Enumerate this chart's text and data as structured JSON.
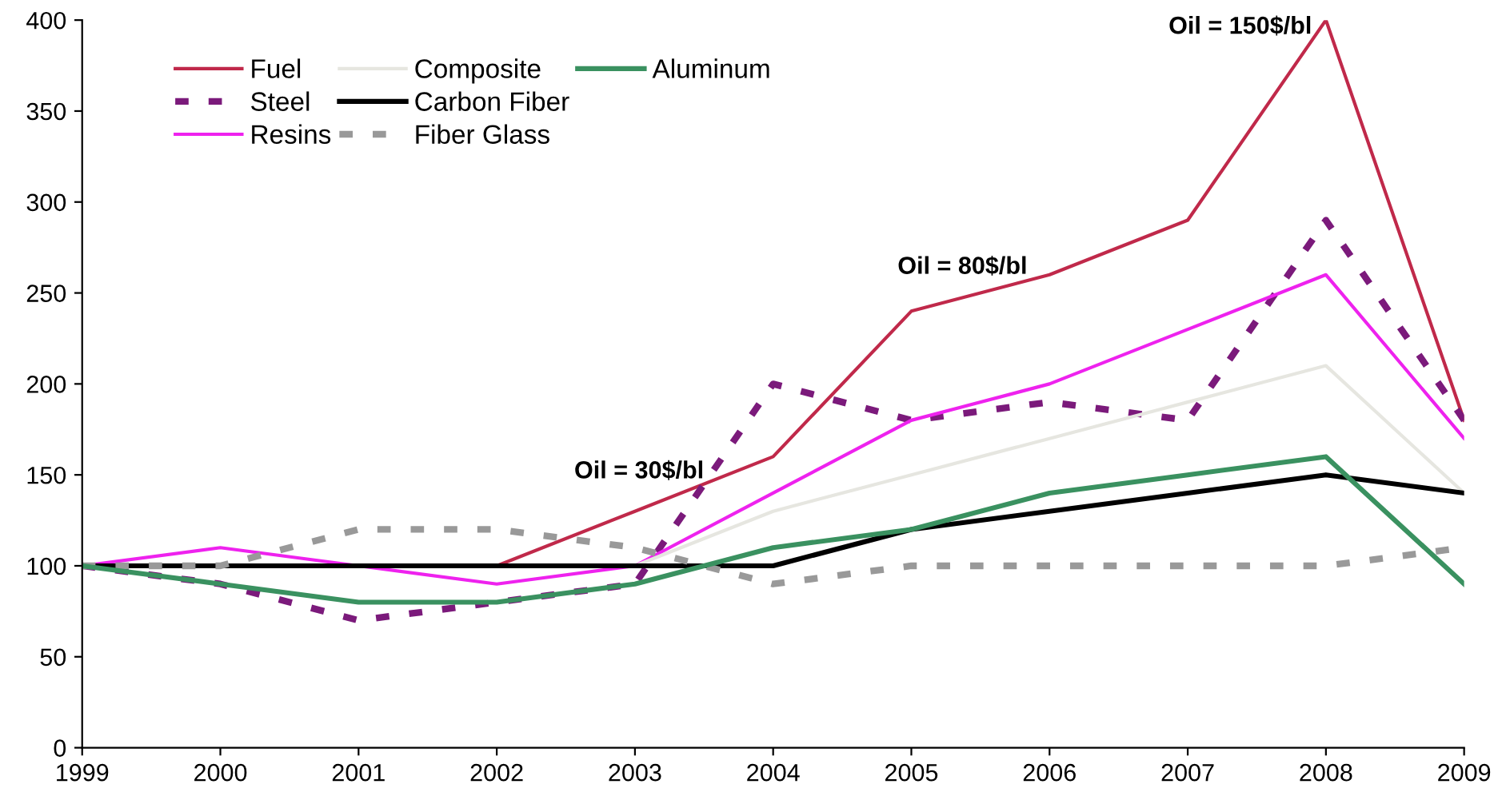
{
  "chart_data": {
    "type": "line",
    "x": [
      1999,
      2000,
      2001,
      2002,
      2003,
      2004,
      2005,
      2006,
      2007,
      2008,
      2009
    ],
    "xlim": [
      1999,
      2009
    ],
    "xticks": [
      1999,
      2000,
      2001,
      2002,
      2003,
      2004,
      2005,
      2006,
      2007,
      2008,
      2009
    ],
    "ylim": [
      0,
      400
    ],
    "yticks": [
      0,
      50,
      100,
      150,
      200,
      250,
      300,
      350,
      400
    ],
    "grid": false,
    "legend": "top left",
    "marker": "none",
    "series": [
      {
        "name": "Fuel",
        "color": "#c0294a",
        "values": [
          null,
          null,
          null,
          100,
          130,
          160,
          240,
          260,
          290,
          400,
          180
        ]
      },
      {
        "name": "Steel",
        "color": "#7b1a7b",
        "line_style": "dashed",
        "values": [
          100,
          90,
          70,
          80,
          90,
          200,
          180,
          190,
          180,
          290,
          180
        ]
      },
      {
        "name": "Resins",
        "color": "#ee22ee",
        "values": [
          100,
          110,
          100,
          90,
          100,
          140,
          180,
          200,
          230,
          260,
          170
        ]
      },
      {
        "name": "Composite",
        "color": "#e6e6e0",
        "values": [
          null,
          null,
          null,
          null,
          100,
          130,
          150,
          170,
          190,
          210,
          140
        ]
      },
      {
        "name": "Carbon Fiber",
        "color": "#000000",
        "values": [
          100,
          100,
          100,
          100,
          100,
          100,
          120,
          130,
          140,
          150,
          140
        ]
      },
      {
        "name": "Fiber Glass",
        "color": "#999999",
        "line_style": "dashed",
        "values": [
          100,
          100,
          120,
          120,
          110,
          90,
          100,
          100,
          100,
          100,
          110
        ]
      },
      {
        "name": "Aluminum",
        "color": "#3a9160",
        "values": [
          100,
          90,
          80,
          80,
          90,
          110,
          120,
          140,
          150,
          160,
          90
        ]
      }
    ],
    "annotations": [
      "Oil = 30$/bl",
      "Oil = 80$/bl",
      "Oil = 150$/bl"
    ]
  }
}
